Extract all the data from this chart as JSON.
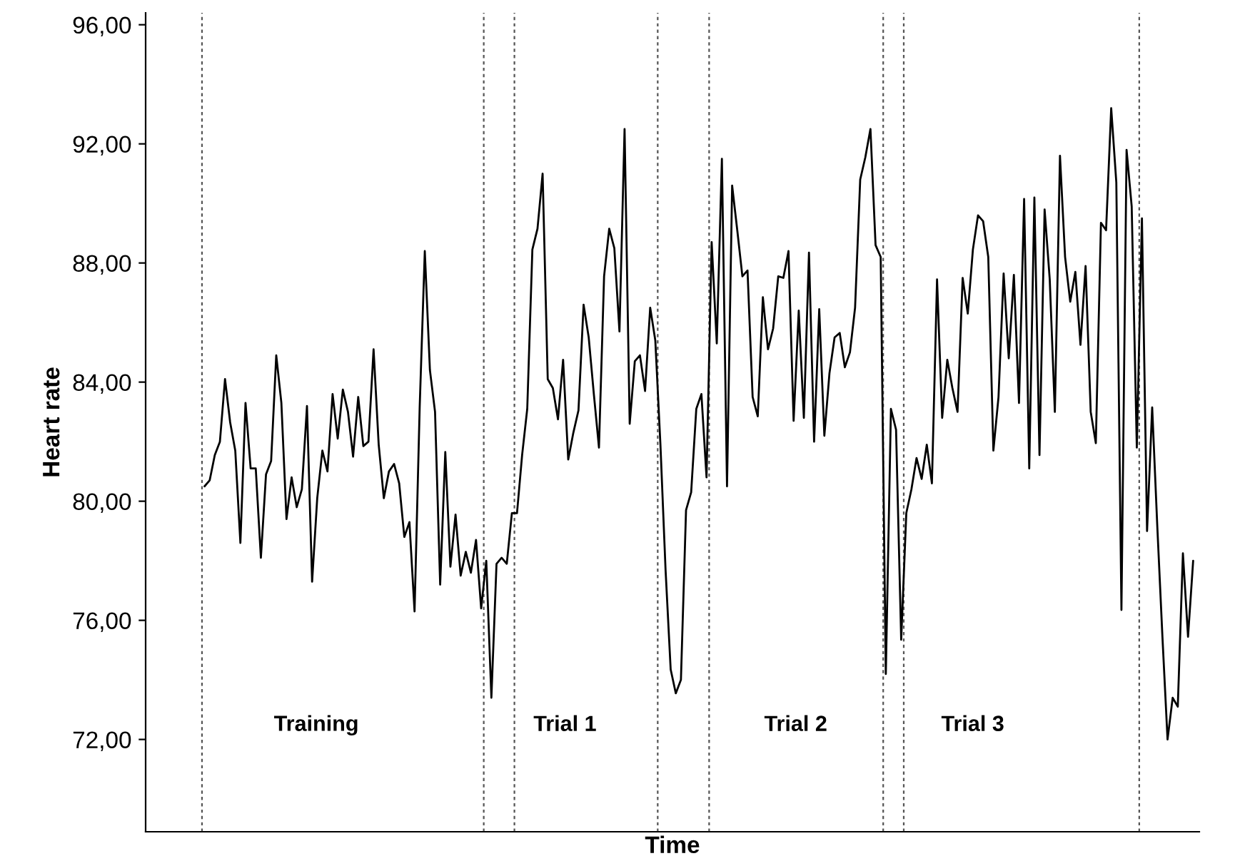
{
  "chart_data": {
    "type": "line",
    "xlabel": "Time",
    "ylabel": "Heart rate",
    "categories": [
      null,
      null,
      null,
      null,
      null,
      null,
      null,
      null,
      null,
      null,
      null,
      null,
      null,
      null,
      null,
      null,
      null,
      null,
      null,
      null,
      null,
      null,
      null,
      null,
      null,
      null,
      null,
      null,
      null,
      null,
      null,
      null,
      null,
      null,
      null,
      null,
      null,
      null,
      null,
      null,
      null,
      null,
      null,
      null,
      null,
      null,
      null,
      null,
      null,
      null,
      null,
      null,
      null,
      null,
      null,
      null,
      null,
      null,
      null,
      null,
      null,
      null,
      null,
      null,
      null,
      null,
      null,
      null,
      null,
      null,
      null,
      null,
      null,
      null,
      null,
      null,
      null,
      null,
      null,
      null,
      null,
      null,
      null,
      null,
      null,
      null,
      null,
      null,
      null,
      null,
      null,
      null,
      null,
      null,
      null,
      null,
      null,
      null,
      null,
      null,
      null,
      null,
      null,
      null,
      null,
      null,
      null,
      null,
      null,
      null,
      null,
      null,
      null,
      null,
      null,
      null,
      null,
      null,
      null,
      null,
      null,
      null,
      null,
      null,
      null,
      null,
      null,
      null,
      null,
      null,
      null,
      null,
      null,
      null,
      null,
      null,
      null,
      null,
      null,
      null,
      null,
      null,
      null,
      null,
      null,
      null,
      null,
      null,
      null,
      null,
      null,
      null,
      null,
      null,
      null,
      null,
      null,
      null,
      null,
      null,
      null,
      null,
      null,
      null,
      null,
      null,
      null,
      null,
      null,
      null,
      null,
      null,
      null,
      null,
      null,
      null,
      null,
      null,
      null,
      null,
      null,
      null,
      null,
      null,
      null,
      null,
      null,
      null,
      null,
      null,
      null,
      null,
      null,
      null
    ],
    "series": [
      {
        "color": "#000000",
        "values": [
          80.5,
          80.7,
          81.55,
          82.0,
          84.1,
          82.65,
          81.7,
          78.6,
          83.3,
          81.1,
          81.1,
          78.1,
          80.9,
          81.35,
          84.9,
          83.3,
          79.4,
          80.8,
          79.8,
          80.4,
          83.2,
          77.3,
          80.1,
          81.7,
          81.0,
          83.6,
          82.1,
          83.75,
          83.0,
          81.5,
          83.5,
          81.85,
          82.0,
          85.1,
          81.9,
          80.1,
          81.0,
          81.25,
          80.6,
          78.8,
          79.3,
          76.3,
          83.15,
          88.4,
          84.4,
          83.0,
          77.2,
          81.65,
          77.8,
          79.55,
          77.5,
          78.3,
          77.6,
          78.7,
          76.4,
          78.0,
          73.4,
          77.9,
          78.1,
          77.9,
          79.6,
          79.6,
          81.55,
          83.1,
          88.45,
          89.15,
          91.0,
          84.1,
          83.8,
          82.75,
          84.75,
          81.4,
          82.3,
          83.05,
          86.6,
          85.5,
          83.6,
          81.8,
          87.55,
          89.15,
          88.5,
          85.7,
          92.5,
          82.6,
          84.7,
          84.9,
          83.7,
          86.5,
          85.4,
          81.9,
          77.7,
          74.35,
          73.55,
          74.0,
          79.7,
          80.3,
          83.1,
          83.6,
          80.8,
          88.7,
          85.3,
          91.5,
          80.5,
          90.6,
          89.1,
          87.55,
          87.75,
          83.5,
          82.85,
          86.85,
          85.1,
          85.8,
          87.55,
          87.5,
          88.4,
          82.7,
          86.4,
          82.8,
          88.35,
          82.0,
          86.45,
          82.2,
          84.3,
          85.5,
          85.65,
          84.5,
          85.0,
          86.5,
          90.8,
          91.55,
          92.5,
          88.6,
          88.2,
          74.2,
          83.1,
          82.4,
          75.35,
          79.6,
          80.4,
          81.45,
          80.75,
          81.9,
          80.6,
          87.45,
          82.8,
          84.75,
          83.8,
          83.0,
          87.5,
          86.3,
          88.45,
          89.6,
          89.4,
          88.2,
          81.7,
          83.5,
          87.65,
          84.8,
          87.6,
          83.3,
          90.15,
          81.1,
          90.2,
          81.55,
          89.8,
          87.45,
          83.0,
          91.6,
          88.2,
          86.7,
          87.7,
          85.25,
          87.9,
          83.0,
          81.95,
          89.35,
          89.1,
          93.2,
          90.7,
          76.35,
          91.8,
          89.9,
          81.8,
          89.5,
          79.0,
          83.15,
          79.15,
          75.45,
          72.0,
          73.4,
          73.1,
          78.25,
          75.45,
          78.0
        ]
      }
    ],
    "ylim": [
      68.9,
      96.4
    ],
    "yticks": [
      {
        "value": 72,
        "label": "72,00"
      },
      {
        "value": 76,
        "label": "76,00"
      },
      {
        "value": 80,
        "label": "80,00"
      },
      {
        "value": 84,
        "label": "84,00"
      },
      {
        "value": 88,
        "label": "88,00"
      },
      {
        "value": 92,
        "label": "92,00"
      },
      {
        "value": 96,
        "label": "96,00"
      }
    ],
    "tick_labels": "y",
    "annotations": [
      "Training",
      "Trial 1",
      "Trial 2",
      "Trial 3"
    ],
    "marker": "none",
    "line_style": "solid"
  }
}
